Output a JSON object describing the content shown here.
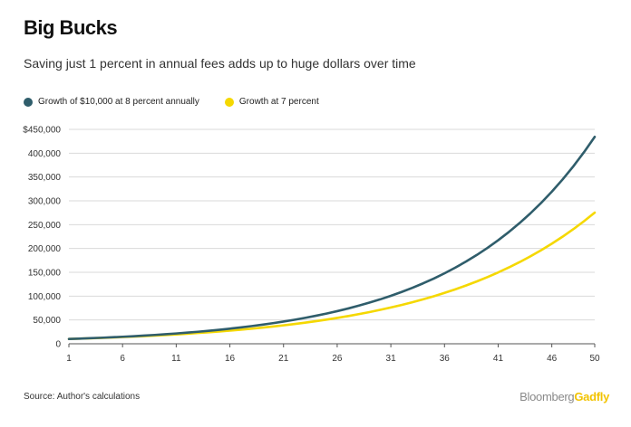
{
  "title": "Big Bucks",
  "subtitle": "Saving just 1 percent in annual fees adds up to huge dollars over time",
  "source": "Source: Author's calculations",
  "brand": {
    "part1": "Bloomberg",
    "part2": "Gadfly"
  },
  "colors": {
    "series1": "#2f5d6b",
    "series2": "#f5d800",
    "grid": "#d9d9d9",
    "axis": "#555555"
  },
  "chart_data": {
    "type": "line",
    "x_range": [
      1,
      50
    ],
    "ylim": [
      0,
      450000
    ],
    "x_ticks": [
      1,
      6,
      11,
      16,
      21,
      26,
      31,
      36,
      41,
      46,
      50
    ],
    "y_ticks": [
      {
        "value": 0,
        "label": "0"
      },
      {
        "value": 50000,
        "label": "50,000"
      },
      {
        "value": 100000,
        "label": "100,000"
      },
      {
        "value": 150000,
        "label": "150,000"
      },
      {
        "value": 200000,
        "label": "200,000"
      },
      {
        "value": 250000,
        "label": "250,000"
      },
      {
        "value": 300000,
        "label": "300,000"
      },
      {
        "value": 350000,
        "label": "350,000"
      },
      {
        "value": 400000,
        "label": "400,000"
      },
      {
        "value": 450000,
        "label": "$450,000"
      }
    ],
    "grid": true,
    "legend_position": "top-left",
    "series": [
      {
        "name": "Growth of $10,000 at 8 percent annually",
        "x": [
          1,
          2,
          3,
          4,
          5,
          6,
          7,
          8,
          9,
          10,
          11,
          12,
          13,
          14,
          15,
          16,
          17,
          18,
          19,
          20,
          21,
          22,
          23,
          24,
          25,
          26,
          27,
          28,
          29,
          30,
          31,
          32,
          33,
          34,
          35,
          36,
          37,
          38,
          39,
          40,
          41,
          42,
          43,
          44,
          45,
          46,
          47,
          48,
          49,
          50
        ],
        "y": [
          10000,
          10800,
          11664,
          12597,
          13605,
          14693,
          15869,
          17138,
          18509,
          19990,
          21589,
          23316,
          25182,
          27196,
          29372,
          31722,
          34259,
          37000,
          39960,
          43157,
          46610,
          50338,
          54365,
          58715,
          63412,
          68485,
          73964,
          79881,
          86271,
          93173,
          100627,
          108677,
          117371,
          126760,
          136901,
          147853,
          159682,
          172456,
          186253,
          201153,
          217245,
          234625,
          253395,
          273666,
          295560,
          319204,
          344741,
          372320,
          402106,
          434274
        ]
      },
      {
        "name": "Growth at 7 percent",
        "x": [
          1,
          2,
          3,
          4,
          5,
          6,
          7,
          8,
          9,
          10,
          11,
          12,
          13,
          14,
          15,
          16,
          17,
          18,
          19,
          20,
          21,
          22,
          23,
          24,
          25,
          26,
          27,
          28,
          29,
          30,
          31,
          32,
          33,
          34,
          35,
          36,
          37,
          38,
          39,
          40,
          41,
          42,
          43,
          44,
          45,
          46,
          47,
          48,
          49,
          50
        ],
        "y": [
          10000,
          10700,
          11449,
          12250,
          13108,
          14026,
          15007,
          16058,
          17182,
          18385,
          19672,
          21049,
          22522,
          24098,
          25785,
          27590,
          29522,
          31588,
          33799,
          36165,
          38697,
          41406,
          44304,
          47405,
          50724,
          54274,
          58074,
          62139,
          66488,
          71143,
          76123,
          81451,
          87153,
          93253,
          99781,
          106766,
          114239,
          122236,
          130793,
          139948,
          149745,
          160227,
          171443,
          183444,
          196285,
          210025,
          224726,
          240457,
          257289,
          275299
        ]
      }
    ]
  }
}
